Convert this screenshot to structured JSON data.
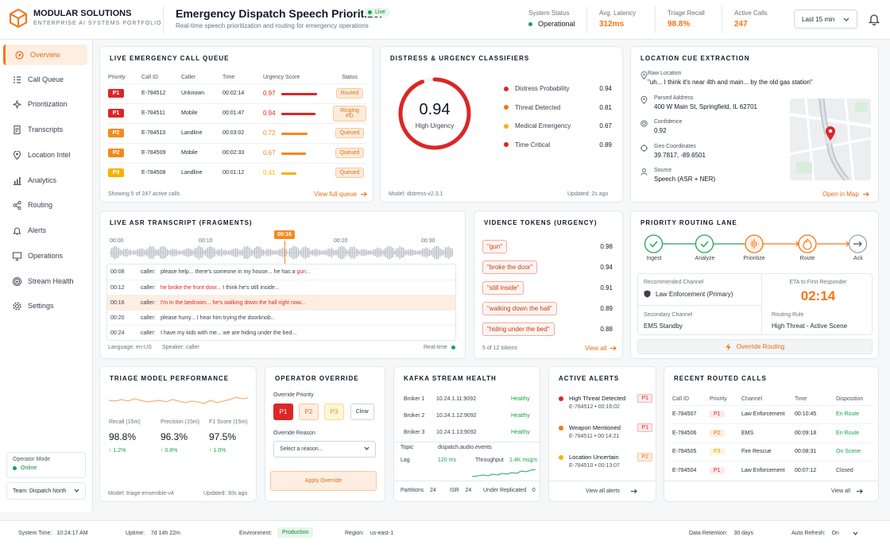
{
  "brand": {
    "name": "MODULAR SOLUTIONS",
    "tagline": "ENTERPRISE AI SYSTEMS PORTFOLIO"
  },
  "header": {
    "title": "Emergency Dispatch Speech Prioritizer",
    "live_badge": "Live",
    "subtitle": "Real-time speech prioritization and routing for emergency operations",
    "stats": [
      {
        "label": "System Status",
        "value": "Operational"
      },
      {
        "label": "Avg. Latency",
        "value": "312ms"
      },
      {
        "label": "Triage Recall",
        "value": "98.8%"
      },
      {
        "label": "Active Calls",
        "value": "247"
      }
    ],
    "time_range": "Last 15 min"
  },
  "sidebar": {
    "items": [
      {
        "label": "Overview",
        "icon": "compass-icon"
      },
      {
        "label": "Call Queue",
        "icon": "list-icon"
      },
      {
        "label": "Prioritization",
        "icon": "sparkle-icon"
      },
      {
        "label": "Transcripts",
        "icon": "document-icon"
      },
      {
        "label": "Location Intel",
        "icon": "pin-icon"
      },
      {
        "label": "Analytics",
        "icon": "bar-chart-icon"
      },
      {
        "label": "Routing",
        "icon": "share-icon"
      },
      {
        "label": "Alerts",
        "icon": "bell-icon"
      },
      {
        "label": "Operations",
        "icon": "monitor-icon"
      },
      {
        "label": "Stream Health",
        "icon": "signal-icon"
      },
      {
        "label": "Settings",
        "icon": "gear-icon"
      }
    ],
    "operator_mode_label": "Operator Mode",
    "operator_mode_value": "Online",
    "team": "Team: Dispatch North"
  },
  "queue": {
    "title": "LIVE EMERGENCY CALL QUEUE",
    "columns": [
      "Priority",
      "Call ID",
      "Caller",
      "Time",
      "Urgency Score",
      "Status"
    ],
    "rows": [
      {
        "priority": "P1",
        "id": "E-784512",
        "caller": "Unknown",
        "time": "00:02:14",
        "score": "0.97",
        "score_num": 0.97,
        "status": "Routed"
      },
      {
        "priority": "P1",
        "id": "E-784511",
        "caller": "Mobile",
        "time": "00:01:47",
        "score": "0.94",
        "score_num": 0.94,
        "status": "Ringing PD"
      },
      {
        "priority": "P2",
        "id": "E-784510",
        "caller": "Landline",
        "time": "00:03:02",
        "score": "0.72",
        "score_num": 0.72,
        "status": "Queued"
      },
      {
        "priority": "P2",
        "id": "E-784509",
        "caller": "Mobile",
        "time": "00:02:33",
        "score": "0.67",
        "score_num": 0.67,
        "status": "Queued"
      },
      {
        "priority": "P3",
        "id": "E-784508",
        "caller": "Landline",
        "time": "00:01:12",
        "score": "0.41",
        "score_num": 0.41,
        "status": "Queued"
      }
    ],
    "footer": "Showing 5 of 247 active calls",
    "link": "View full queue"
  },
  "classifiers": {
    "title": "DISTRESS & URGENCY CLASSIFIERS",
    "gauge_value": "0.94",
    "gauge_num": 0.94,
    "gauge_label": "High Urgency",
    "items": [
      {
        "label": "Distress Probability",
        "value": "0.94",
        "color": "#dc2626"
      },
      {
        "label": "Threat Detected",
        "value": "0.81",
        "color": "#f97316"
      },
      {
        "label": "Medical Emergency",
        "value": "0.67",
        "color": "#f5b301"
      },
      {
        "label": "Time Critical",
        "value": "0.89",
        "color": "#dc2626"
      }
    ],
    "model": "Model: distress-v2.3.1",
    "updated": "Updated: 2s ago"
  },
  "location": {
    "title": "LOCATION CUE EXTRACTION",
    "fields": [
      {
        "label": "Raw Location",
        "value": "\"uh... I think it's near 4th and main... by the old gas station\"",
        "icon": "pin-icon"
      },
      {
        "label": "Parsed Address",
        "value": "400 W Main St, Springfield, IL 62701",
        "icon": "pin-icon"
      },
      {
        "label": "Confidence",
        "value": "0.92",
        "icon": "target-icon"
      },
      {
        "label": "Geo Coordinates",
        "value": "39.7817, -89.6501",
        "icon": "crosshair-icon"
      },
      {
        "label": "Source",
        "value": "Speech (ASR + NER)",
        "icon": "user-icon"
      }
    ],
    "link": "Open in Map"
  },
  "transcript": {
    "title": "LIVE ASR TRANSCRIPT (FRAGMENTS)",
    "ticks": [
      "00:00",
      "00:10",
      "00:20",
      "00:30"
    ],
    "cursor": "00:16",
    "lines": [
      {
        "time": "00:08",
        "speaker": "caller:",
        "text": "please help... there's someone in my house... he has a ",
        "hl": "gun...",
        "rest": "",
        "active": false
      },
      {
        "time": "00:12",
        "speaker": "caller:",
        "text": "",
        "hl": "he broke the front door...",
        "rest": " I think he's still inside...",
        "active": false
      },
      {
        "time": "00:16",
        "speaker": "caller:",
        "text": "",
        "hl": "I'm in the bedroom... he's walking down the hall right now...",
        "rest": "",
        "active": true
      },
      {
        "time": "00:20",
        "speaker": "caller:",
        "text": "please hurry... I hear him trying the doorknob...",
        "hl": "",
        "rest": "",
        "active": false
      },
      {
        "time": "00:24",
        "speaker": "caller:",
        "text": "I have my kids with me... we are hiding under the bed...",
        "hl": "",
        "rest": "",
        "active": false
      }
    ],
    "language_label": "Language:",
    "language": "en-US",
    "speaker_label": "Speaker:",
    "speaker": "caller",
    "realtime": "Real-time"
  },
  "tokens": {
    "title": "VIDENCE TOKENS (URGENCY)",
    "items": [
      {
        "text": "\"gun\"",
        "score": "0.98"
      },
      {
        "text": "\"broke the door\"",
        "score": "0.94"
      },
      {
        "text": "\"still inside\"",
        "score": "0.91"
      },
      {
        "text": "\"walking down the hall\"",
        "score": "0.89"
      },
      {
        "text": "\"hiding under the bed\"",
        "score": "0.88"
      }
    ],
    "footer": "5 of 12 tokens",
    "link": "View all"
  },
  "routing": {
    "title": "PRIORITY ROUTING LANE",
    "steps": [
      "Ingest",
      "Analyze",
      "Prioritize",
      "Route",
      "Ack"
    ],
    "recommended_label": "Recommended Channel",
    "recommended": "Law Enforcement",
    "recommended_suffix": "(Primary)",
    "eta_label": "ETA to First Responder",
    "eta": "02:14",
    "secondary_label": "Secondary Channel",
    "secondary": "EMS Standby",
    "rule_label": "Routing Rule",
    "rule": "High Threat - Active Scene",
    "override": "Override Routing"
  },
  "triage": {
    "title": "TRIAGE MODEL PERFORMANCE",
    "metrics": [
      {
        "label": "Recall (15m)",
        "value": "98.8%",
        "delta": "1.2%"
      },
      {
        "label": "Precision (15m)",
        "value": "96.3%",
        "delta": "0.8%"
      },
      {
        "label": "F1 Score (15m)",
        "value": "97.5%",
        "delta": "1.0%"
      }
    ],
    "model": "Model: triage-ensemble-v4",
    "updated": "Updated: 30s ago"
  },
  "override": {
    "title": "OPERATOR OVERRIDE",
    "priority_label": "Override Priority",
    "options": [
      "P1",
      "P2",
      "P3"
    ],
    "clear": "Clear",
    "reason_label": "Override Reason",
    "reason_placeholder": "Select a reason...",
    "apply": "Apply Override"
  },
  "kafka": {
    "title": "KAFKA STREAM HEALTH",
    "brokers": [
      {
        "name": "Broker 1",
        "addr": "10.24.1.11:9092",
        "status": "Healthy"
      },
      {
        "name": "Broker 2",
        "addr": "10.24.1.12:9092",
        "status": "Healthy"
      },
      {
        "name": "Broker 3",
        "addr": "10.24.1.13:9092",
        "status": "Healthy"
      }
    ],
    "topic_label": "Topic",
    "topic": "dispatch.audio.events",
    "lag_label": "Lag",
    "lag": "120 ms",
    "throughput_label": "Throughput",
    "throughput": "1.4K msg/s",
    "partitions_label": "Partitions",
    "partitions": "24",
    "isr_label": "ISR",
    "isr": "24",
    "under_label": "Under Replicated",
    "under": "0"
  },
  "alerts": {
    "title": "ACTIVE ALERTS",
    "items": [
      {
        "title": "High Threat Detected",
        "sub": "E-784512 • 00:16:02",
        "priority": "P1",
        "color": "#dc2626"
      },
      {
        "title": "Weapon Mentioned",
        "sub": "E-784511 • 00:14:21",
        "priority": "P1",
        "color": "#f97316"
      },
      {
        "title": "Location Uncertain",
        "sub": "E-784510 • 00:13:07",
        "priority": "P2",
        "color": "#f5b301"
      }
    ],
    "link": "View all alerts"
  },
  "recent": {
    "title": "RECENT ROUTED CALLS",
    "columns": [
      "Call ID",
      "Priority",
      "Channel",
      "Time",
      "Disposition"
    ],
    "rows": [
      {
        "id": "E-784507",
        "priority": "P1",
        "channel": "Law Enforcement",
        "time": "00:10:45",
        "disposition": "En Route"
      },
      {
        "id": "E-784506",
        "priority": "P2",
        "channel": "EMS",
        "time": "00:09:18",
        "disposition": "En Route"
      },
      {
        "id": "E-784505",
        "priority": "P3",
        "channel": "Fire Rescue",
        "time": "00:08:31",
        "disposition": "On Scene"
      },
      {
        "id": "E-784504",
        "priority": "P1",
        "channel": "Law Enforcement",
        "time": "00:07:12",
        "disposition": "Closed"
      }
    ],
    "link": "View all"
  },
  "footer": {
    "system_time_label": "System Time:",
    "system_time": "10:24:17 AM",
    "uptime_label": "Uptime:",
    "uptime": "7d 14h 22m",
    "env_label": "Environment:",
    "env": "Production",
    "region_label": "Region:",
    "region": "us-east-1",
    "retention_label": "Data Retention:",
    "retention": "30 days",
    "refresh_label": "Auto Refresh:",
    "refresh": "On"
  }
}
